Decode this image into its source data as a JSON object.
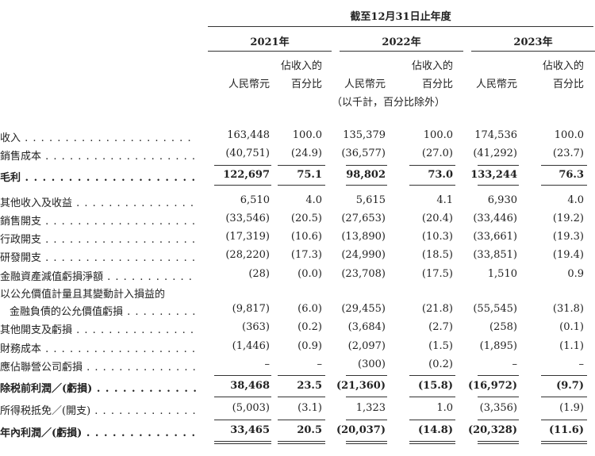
{
  "header": {
    "period": "截至12月31日止年度",
    "years": [
      "2021年",
      "2022年",
      "2023年"
    ],
    "col_amount": "人民幣元",
    "col_percent_line1": "佔收入的",
    "col_percent_line2": "百分比",
    "note": "（以千計，百分比除外）"
  },
  "rows": [
    {
      "label": "收入",
      "dots": true,
      "bold": false,
      "values": [
        "163,448",
        "100.0",
        "135,379",
        "100.0",
        "174,536",
        "100.0"
      ]
    },
    {
      "label": "銷售成本",
      "dots": true,
      "bold": false,
      "values": [
        "(40,751)",
        "(24.9)",
        "(36,577)",
        "(27.0)",
        "(41,292)",
        "(23.7)"
      ]
    },
    {
      "label": "毛利",
      "dots": true,
      "bold": true,
      "values": [
        "122,697",
        "75.1",
        "98,802",
        "73.0",
        "133,244",
        "76.3"
      ]
    },
    {
      "label": "其他收入及收益",
      "dots": true,
      "bold": false,
      "values": [
        "6,510",
        "4.0",
        "5,615",
        "4.1",
        "6,930",
        "4.0"
      ]
    },
    {
      "label": "銷售開支",
      "dots": true,
      "bold": false,
      "values": [
        "(33,546)",
        "(20.5)",
        "(27,653)",
        "(20.4)",
        "(33,446)",
        "(19.2)"
      ]
    },
    {
      "label": "行政開支",
      "dots": true,
      "bold": false,
      "values": [
        "(17,319)",
        "(10.6)",
        "(13,890)",
        "(10.3)",
        "(33,661)",
        "(19.3)"
      ]
    },
    {
      "label": "研發開支",
      "dots": true,
      "bold": false,
      "values": [
        "(28,220)",
        "(17.3)",
        "(24,990)",
        "(18.5)",
        "(33,851)",
        "(19.4)"
      ]
    },
    {
      "label": "金融資產減值虧損淨額",
      "dots": true,
      "bold": false,
      "values": [
        "(28)",
        "(0.0)",
        "(23,708)",
        "(17.5)",
        "1,510",
        "0.9"
      ]
    },
    {
      "label": "以公允價值計量且其變動計入損益的",
      "dots": false,
      "bold": false,
      "values": []
    },
    {
      "label": "金融負債的公允價值虧損",
      "dots": true,
      "bold": false,
      "indent": true,
      "values": [
        "(9,817)",
        "(6.0)",
        "(29,455)",
        "(21.8)",
        "(55,545)",
        "(31.8)"
      ]
    },
    {
      "label": "其他開支及虧損",
      "dots": true,
      "bold": false,
      "values": [
        "(363)",
        "(0.2)",
        "(3,684)",
        "(2.7)",
        "(258)",
        "(0.1)"
      ]
    },
    {
      "label": "財務成本",
      "dots": true,
      "bold": false,
      "values": [
        "(1,446)",
        "(0.9)",
        "(2,097)",
        "(1.5)",
        "(1,895)",
        "(1.1)"
      ]
    },
    {
      "label": "應佔聯營公司虧損",
      "dots": true,
      "bold": false,
      "values": [
        "–",
        "–",
        "(300)",
        "(0.2)",
        "–",
        "–"
      ]
    },
    {
      "label": "除税前利潤／(虧損)",
      "dots": true,
      "bold": true,
      "values": [
        "38,468",
        "23.5",
        "(21,360)",
        "(15.8)",
        "(16,972)",
        "(9.7)"
      ]
    },
    {
      "label": "所得税抵免／(開支)",
      "dots": true,
      "bold": false,
      "values": [
        "(5,003)",
        "(3.1)",
        "1,323",
        "1.0",
        "(3,356)",
        "(1.9)"
      ]
    },
    {
      "label": "年內利潤／(虧損)",
      "dots": true,
      "bold": true,
      "values": [
        "33,465",
        "20.5",
        "(20,037)",
        "(14.8)",
        "(20,328)",
        "(11.6)"
      ]
    }
  ]
}
